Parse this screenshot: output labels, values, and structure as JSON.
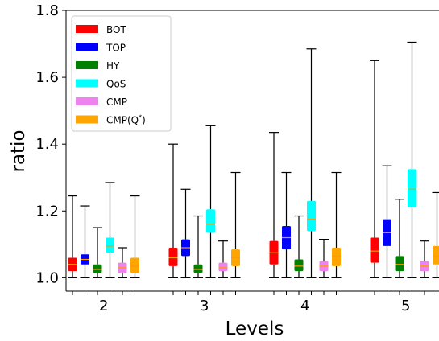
{
  "chart_data": {
    "type": "box",
    "xlabel": "Levels",
    "ylabel": "ratio",
    "ylim": [
      0.96,
      1.8
    ],
    "yticks": [
      "1.0",
      "1.2",
      "1.4",
      "1.6",
      "1.8"
    ],
    "categories": [
      "2",
      "3",
      "4",
      "5"
    ],
    "legend_position": "top-left",
    "series": [
      {
        "name": "BOT",
        "color": "#ff0000",
        "boxes": [
          {
            "min": 1.0,
            "q1": 1.02,
            "median": 1.04,
            "q3": 1.06,
            "max": 1.245
          },
          {
            "min": 1.0,
            "q1": 1.035,
            "median": 1.06,
            "q3": 1.09,
            "max": 1.4
          },
          {
            "min": 1.0,
            "q1": 1.04,
            "median": 1.075,
            "q3": 1.11,
            "max": 1.435
          },
          {
            "min": 1.0,
            "q1": 1.045,
            "median": 1.08,
            "q3": 1.12,
            "max": 1.65
          }
        ]
      },
      {
        "name": "TOP",
        "color": "#0000ff",
        "boxes": [
          {
            "min": 1.0,
            "q1": 1.04,
            "median": 1.055,
            "q3": 1.07,
            "max": 1.215
          },
          {
            "min": 1.0,
            "q1": 1.065,
            "median": 1.09,
            "q3": 1.115,
            "max": 1.265
          },
          {
            "min": 1.0,
            "q1": 1.085,
            "median": 1.12,
            "q3": 1.155,
            "max": 1.315
          },
          {
            "min": 1.0,
            "q1": 1.095,
            "median": 1.135,
            "q3": 1.175,
            "max": 1.335
          }
        ]
      },
      {
        "name": "HY",
        "color": "#008000",
        "boxes": [
          {
            "min": 1.0,
            "q1": 1.015,
            "median": 1.025,
            "q3": 1.04,
            "max": 1.15
          },
          {
            "min": 1.0,
            "q1": 1.015,
            "median": 1.025,
            "q3": 1.04,
            "max": 1.185
          },
          {
            "min": 1.0,
            "q1": 1.02,
            "median": 1.035,
            "q3": 1.055,
            "max": 1.185
          },
          {
            "min": 1.0,
            "q1": 1.02,
            "median": 1.04,
            "q3": 1.065,
            "max": 1.235
          }
        ]
      },
      {
        "name": "QoS",
        "color": "#00ffff",
        "boxes": [
          {
            "min": 1.0,
            "q1": 1.075,
            "median": 1.095,
            "q3": 1.12,
            "max": 1.285
          },
          {
            "min": 1.0,
            "q1": 1.135,
            "median": 1.16,
            "q3": 1.205,
            "max": 1.455
          },
          {
            "min": 1.0,
            "q1": 1.14,
            "median": 1.175,
            "q3": 1.23,
            "max": 1.685
          },
          {
            "min": 1.0,
            "q1": 1.21,
            "median": 1.265,
            "q3": 1.325,
            "max": 1.705
          }
        ]
      },
      {
        "name": "CMP",
        "color": "#ee82ee",
        "boxes": [
          {
            "min": 1.0,
            "q1": 1.015,
            "median": 1.03,
            "q3": 1.045,
            "max": 1.09
          },
          {
            "min": 1.0,
            "q1": 1.02,
            "median": 1.03,
            "q3": 1.045,
            "max": 1.11
          },
          {
            "min": 1.0,
            "q1": 1.02,
            "median": 1.035,
            "q3": 1.05,
            "max": 1.115
          },
          {
            "min": 1.0,
            "q1": 1.02,
            "median": 1.035,
            "q3": 1.05,
            "max": 1.11
          }
        ]
      },
      {
        "name": "CMP(Q*)",
        "color": "#ffa500",
        "boxes": [
          {
            "min": 1.0,
            "q1": 1.015,
            "median": 1.035,
            "q3": 1.06,
            "max": 1.245
          },
          {
            "min": 1.0,
            "q1": 1.035,
            "median": 1.06,
            "q3": 1.085,
            "max": 1.315
          },
          {
            "min": 1.0,
            "q1": 1.035,
            "median": 1.065,
            "q3": 1.09,
            "max": 1.315
          },
          {
            "min": 1.0,
            "q1": 1.04,
            "median": 1.065,
            "q3": 1.095,
            "max": 1.255
          }
        ]
      }
    ],
    "legend": [
      {
        "label": "BOT"
      },
      {
        "label": "TOP"
      },
      {
        "label": "HY"
      },
      {
        "label": "QoS"
      },
      {
        "label": "CMP"
      },
      {
        "label": "CMP(Q",
        "sup": "*",
        "suffix": ")"
      }
    ]
  }
}
